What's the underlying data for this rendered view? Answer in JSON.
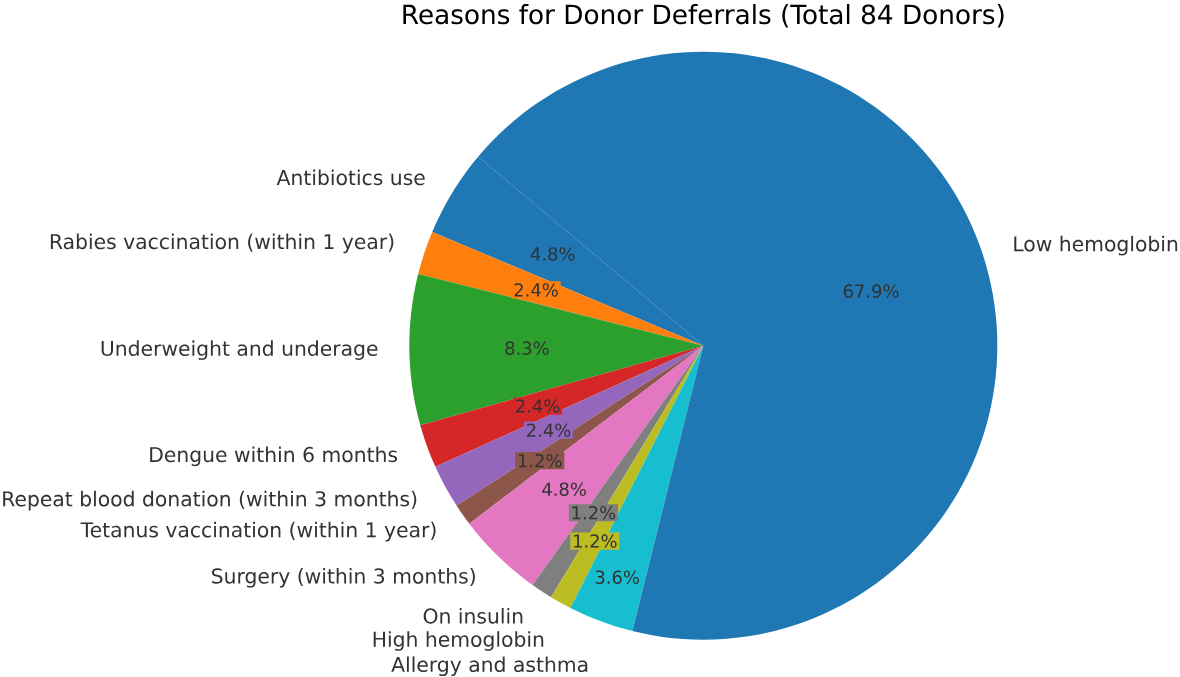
{
  "chart_data": {
    "type": "pie",
    "title": "Reasons for Donor Deferrals (Total 84 Donors)",
    "categories": [
      "Antibiotics use",
      "Rabies vaccination (within 1 year)",
      "Underweight and underage",
      "Dengue within 6 months",
      "Repeat blood donation (within 3 months)",
      "Tetanus vaccination (within 1 year)",
      "Surgery (within 3 months)",
      "On insulin",
      "High hemoglobin",
      "Allergy and asthma",
      "Low hemoglobin"
    ],
    "values": [
      4.8,
      2.4,
      8.3,
      2.4,
      2.4,
      1.2,
      4.8,
      1.2,
      1.2,
      3.6,
      67.9
    ],
    "value_labels": [
      "4.8%",
      "2.4%",
      "8.3%",
      "2.4%",
      "2.4%",
      "1.2%",
      "4.8%",
      "1.2%",
      "1.2%",
      "3.6%",
      "67.9%"
    ],
    "colors": [
      "#1f77b4",
      "#ff7f0e",
      "#2ca02c",
      "#d62728",
      "#9467bd",
      "#8c564b",
      "#e377c2",
      "#7f7f7f",
      "#bcbd22",
      "#17becf",
      "#1f77b4"
    ]
  }
}
